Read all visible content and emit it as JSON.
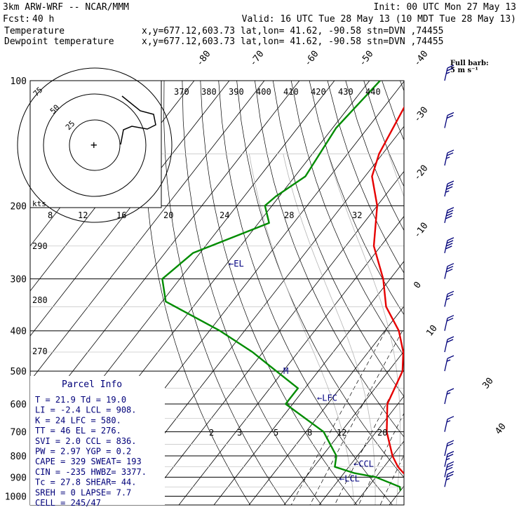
{
  "header": {
    "model": "3km ARW-WRF -- NCAR/MMM",
    "init": "Init: 00 UTC Mon 27 May 13",
    "fcst_label": "Fcst:",
    "fcst_value": "40 h",
    "valid": "Valid: 16 UTC Tue 28 May 13 (10 MDT Tue 28 May 13)",
    "temp_label": "Temperature",
    "dewp_label": "Dewpoint temperature",
    "loc_info": "x,y=677.12,603.73   lat,lon= 41.62, -90.58   stn=DVN ,74455"
  },
  "colors": {
    "temperature": "#e60000",
    "dewpoint": "#008c00",
    "annot": "#000080",
    "wind": "#00007a"
  },
  "wind_key": {
    "line1": "Full barb:",
    "line2": "5 m s⁻¹"
  },
  "parcel_info": {
    "title": "Parcel Info",
    "rows": [
      "T  =   21.9  Td =  19.0",
      "LI =   -2.4  LCL =  908.",
      "K  =     24  LFC =  580.",
      "TT =     46  EL  =  276.",
      "SVI =   2.0  CCL =  836.",
      "PW =   2.97  YGP =   0.2",
      "CAPE =  329  SWEAT=  193",
      "CIN =  -235  HWBZ= 3377.",
      "Tc =   27.8  SHEAR=  44.",
      "SREH =    0  LAPSE=  7.7",
      "CELL = 245/47"
    ]
  },
  "hodograph": {
    "units": "kts",
    "rings": [
      "75",
      "50",
      "25"
    ]
  },
  "chart_data": {
    "type": "line",
    "title": "",
    "xlabel": "",
    "ylabel": "",
    "y_scale": "log-pressure",
    "pressure_levels": [
      100,
      200,
      300,
      400,
      500,
      600,
      700,
      800,
      900,
      1000
    ],
    "isotherm_labels": [
      "-80",
      "-70",
      "-60",
      "-50",
      "-40",
      "-30",
      "-20",
      "-10",
      "0",
      "10",
      "30",
      "40"
    ],
    "theta_labels_top": [
      "370",
      "380",
      "390",
      "400",
      "410",
      "420",
      "430",
      "440"
    ],
    "theta_labels_side": [
      "290",
      "280",
      "270"
    ],
    "mixing_ratio_labels_upper": [
      "8",
      "12",
      "16",
      "20",
      "24",
      "28",
      "32"
    ],
    "mixing_ratio_labels_lower": [
      "2",
      "3",
      "5",
      "8",
      "12",
      "20"
    ],
    "series": [
      {
        "name": "Temperature",
        "p": [
          100,
          150,
          170,
          200,
          250,
          300,
          350,
          400,
          450,
          500,
          600,
          700,
          800,
          850,
          880,
          900,
          950,
          975
        ],
        "value": [
          -66,
          -61,
          -58,
          -50,
          -42,
          -32,
          -25,
          -16,
          -10,
          -6,
          -3,
          3,
          10,
          14,
          17,
          20,
          22,
          23.5
        ]
      },
      {
        "name": "Dewpoint temperature",
        "p": [
          100,
          130,
          170,
          190,
          200,
          220,
          260,
          300,
          340,
          400,
          450,
          500,
          550,
          600,
          700,
          800,
          850,
          880,
          900,
          950,
          970
        ],
        "value": [
          -77,
          -79,
          -77,
          -81,
          -82,
          -77,
          -92,
          -95,
          -89,
          -67,
          -53,
          -42,
          -32,
          -32,
          -15,
          -6,
          -4,
          3,
          10,
          19,
          20
        ]
      }
    ],
    "annotations": [
      {
        "text": "EL",
        "p": 276
      },
      {
        "text": "M",
        "p": 500
      },
      {
        "text": "LFC",
        "p": 580
      },
      {
        "text": "CCL",
        "p": 836
      },
      {
        "text": "LCL",
        "p": 908
      }
    ],
    "wind_barbs": [
      {
        "p": 100,
        "kt": 25
      },
      {
        "p": 130,
        "kt": 20
      },
      {
        "p": 160,
        "kt": 25
      },
      {
        "p": 190,
        "kt": 35
      },
      {
        "p": 220,
        "kt": 40
      },
      {
        "p": 260,
        "kt": 40
      },
      {
        "p": 300,
        "kt": 30
      },
      {
        "p": 350,
        "kt": 25
      },
      {
        "p": 400,
        "kt": 20
      },
      {
        "p": 450,
        "kt": 20
      },
      {
        "p": 500,
        "kt": 15
      },
      {
        "p": 600,
        "kt": 15
      },
      {
        "p": 700,
        "kt": 15
      },
      {
        "p": 800,
        "kt": 20
      },
      {
        "p": 850,
        "kt": 25
      },
      {
        "p": 900,
        "kt": 30
      },
      {
        "p": 950,
        "kt": 25
      }
    ]
  }
}
